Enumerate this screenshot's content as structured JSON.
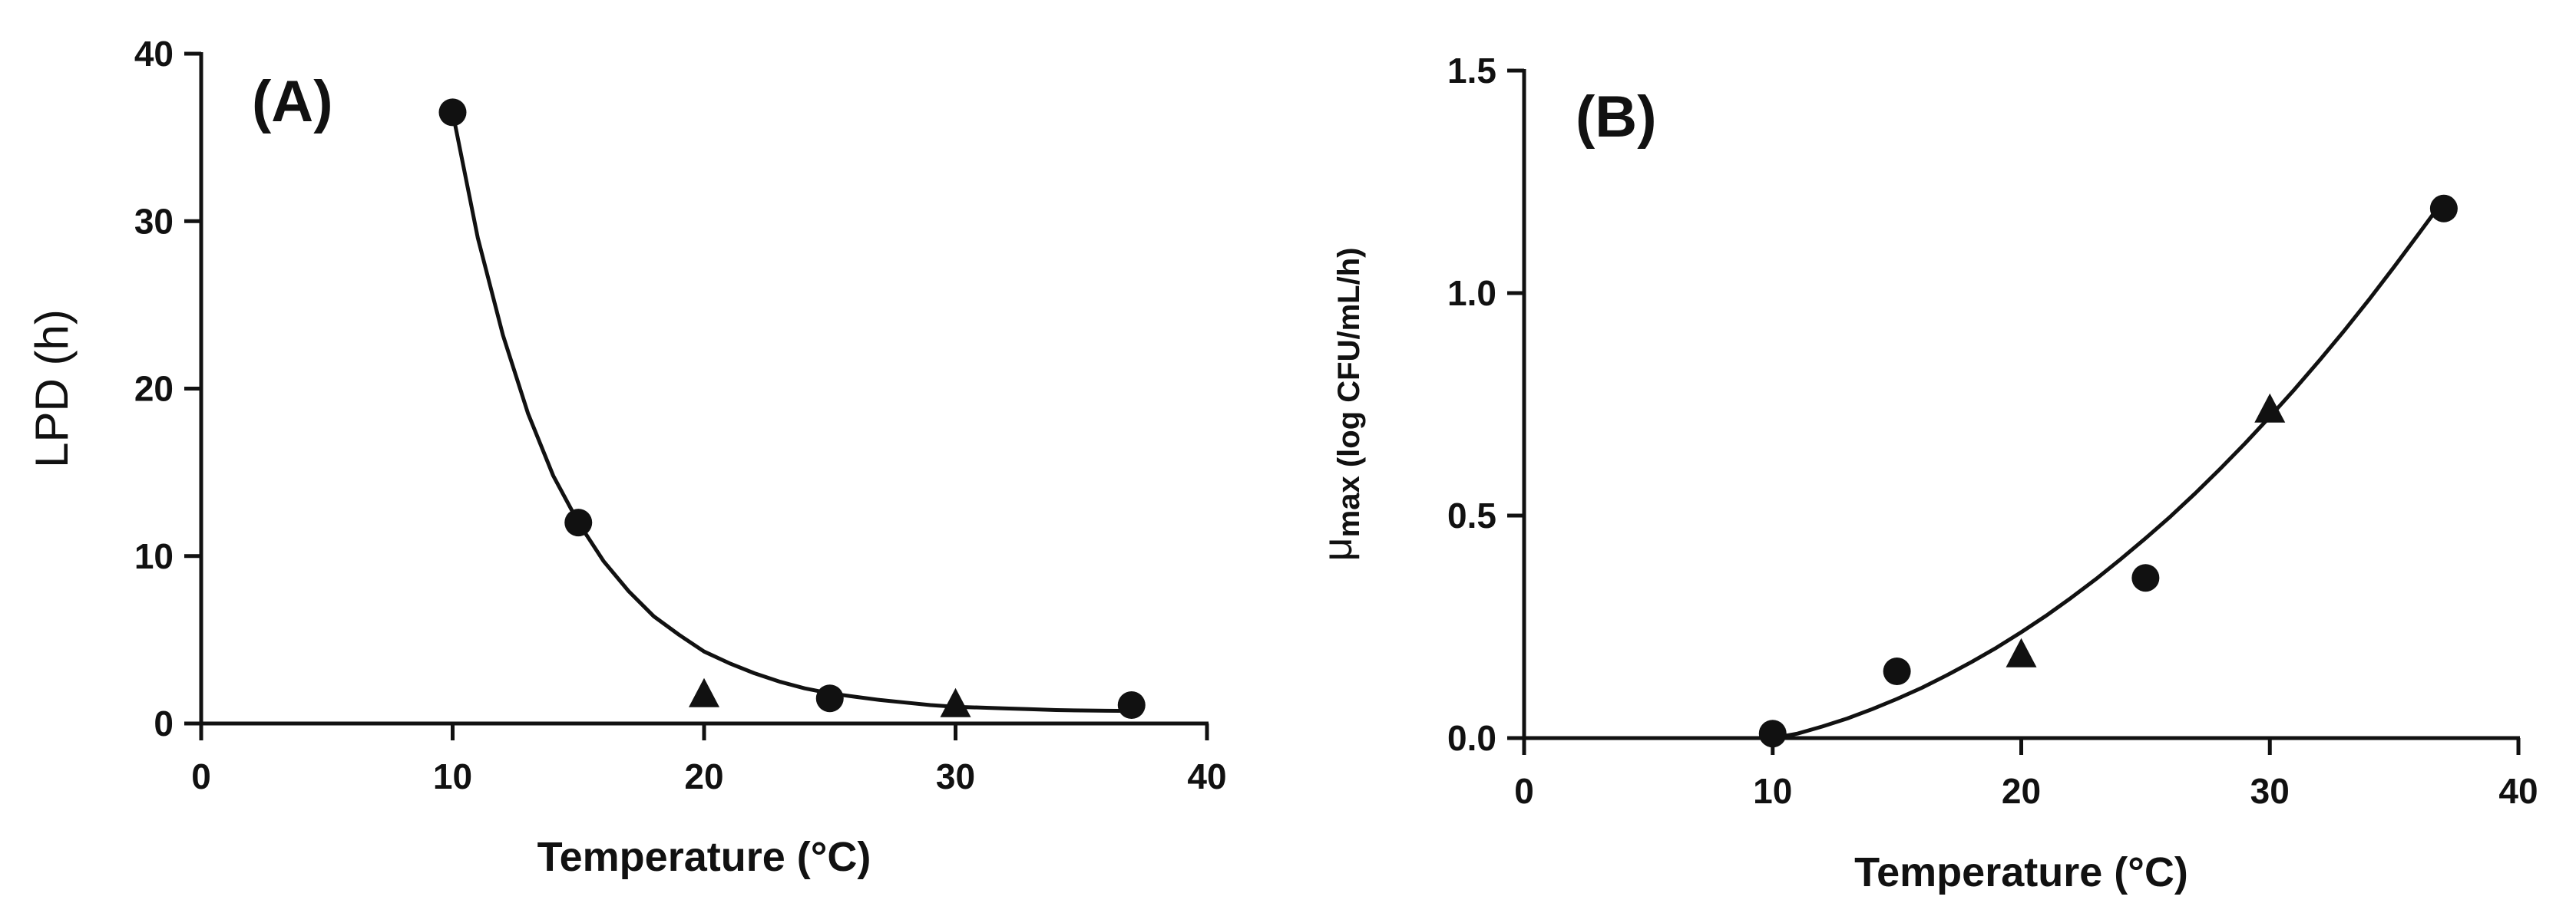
{
  "chart_data": [
    {
      "type": "scatter",
      "panel_label": "(A)",
      "xlabel": "Temperature (°C)",
      "ylabel": "LPD (h)",
      "xlim": [
        0,
        40
      ],
      "ylim": [
        0,
        40
      ],
      "xticks": [
        0,
        10,
        20,
        30,
        40
      ],
      "yticks": [
        0,
        10,
        20,
        30,
        40
      ],
      "grid": false,
      "series": [
        {
          "marker": "circle",
          "x": [
            10,
            15,
            25,
            37
          ],
          "y": [
            36.5,
            12.0,
            1.5,
            1.1
          ]
        },
        {
          "marker": "triangle",
          "x": [
            20,
            30
          ],
          "y": [
            1.8,
            1.2
          ]
        }
      ],
      "fit_curve": {
        "x": [
          10,
          11,
          12,
          13,
          14,
          15,
          16,
          17,
          18,
          19,
          20,
          21,
          22,
          23,
          24,
          25,
          26,
          27,
          28,
          29,
          30,
          31,
          32,
          33,
          34,
          35,
          36,
          37
        ],
        "y": [
          36.5,
          29.0,
          23.2,
          18.5,
          14.8,
          12.0,
          9.7,
          7.9,
          6.4,
          5.3,
          4.3,
          3.6,
          3.0,
          2.5,
          2.1,
          1.8,
          1.6,
          1.4,
          1.25,
          1.1,
          1.0,
          0.95,
          0.9,
          0.85,
          0.8,
          0.78,
          0.76,
          0.75
        ]
      }
    },
    {
      "type": "scatter",
      "panel_label": "(B)",
      "xlabel": "Temperature (°C)",
      "ylabel": "μ",
      "ylabel_sub": "max (log CFU/mL/h)",
      "xlim": [
        0,
        40
      ],
      "ylim": [
        0,
        1.5
      ],
      "xticks": [
        0,
        10,
        20,
        30,
        40
      ],
      "yticks": [
        0.0,
        0.5,
        1.0,
        1.5
      ],
      "ytick_labels": [
        "0.0",
        "0.5",
        "1.0",
        "1.5"
      ],
      "grid": false,
      "series": [
        {
          "marker": "circle",
          "x": [
            10,
            15,
            25,
            37
          ],
          "y": [
            0.01,
            0.15,
            0.36,
            1.19
          ]
        },
        {
          "marker": "triangle",
          "x": [
            20,
            30
          ],
          "y": [
            0.19,
            0.74
          ]
        }
      ],
      "fit_curve": {
        "x": [
          10,
          11,
          12,
          13,
          14,
          15,
          16,
          17,
          18,
          19,
          20,
          21,
          22,
          23,
          24,
          25,
          26,
          27,
          28,
          29,
          30,
          31,
          32,
          33,
          34,
          35,
          36,
          37
        ],
        "y": [
          0.0,
          0.01,
          0.026,
          0.044,
          0.065,
          0.088,
          0.113,
          0.141,
          0.171,
          0.203,
          0.238,
          0.275,
          0.315,
          0.357,
          0.402,
          0.449,
          0.498,
          0.55,
          0.605,
          0.662,
          0.722,
          0.784,
          0.849,
          0.916,
          0.986,
          1.059,
          1.134,
          1.21
        ]
      }
    }
  ]
}
